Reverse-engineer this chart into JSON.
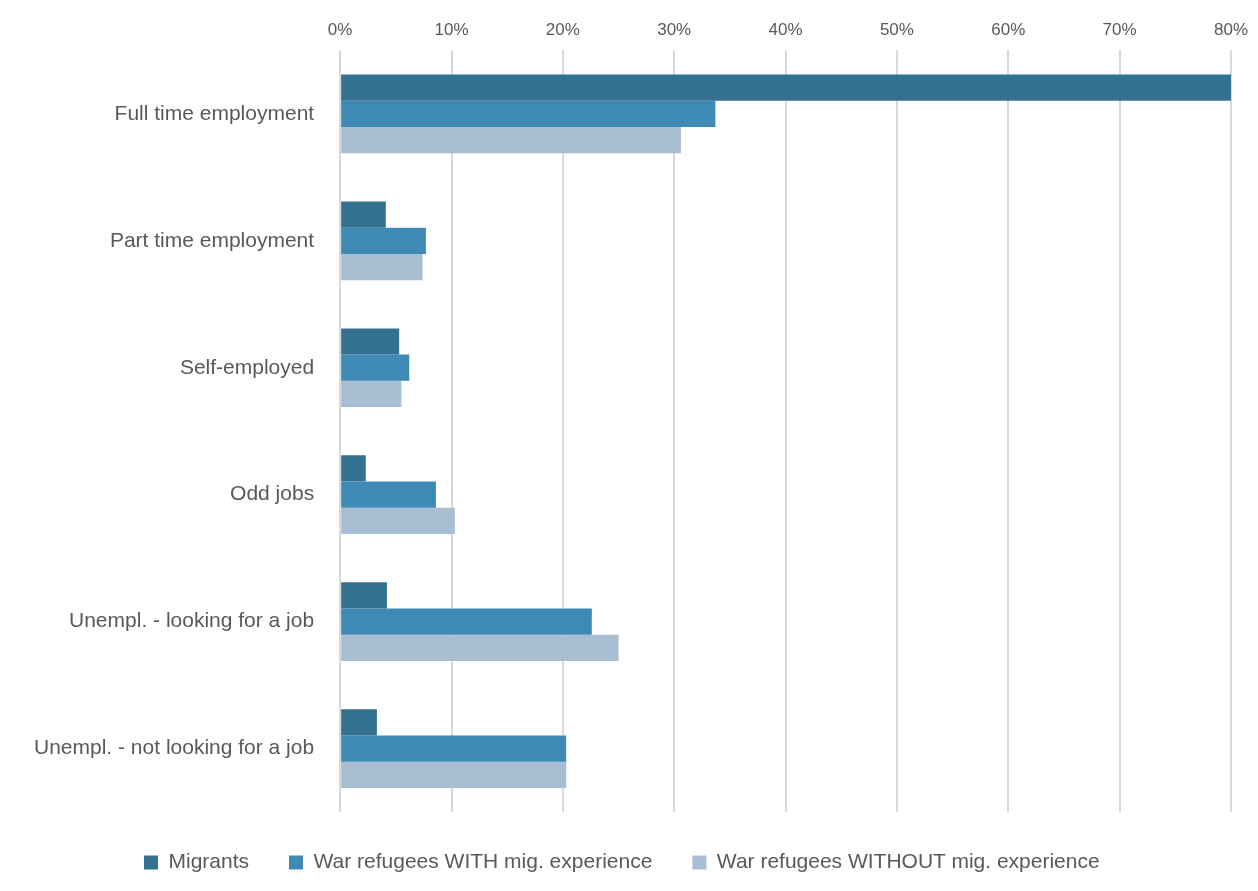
{
  "chart_data": {
    "type": "bar",
    "orientation": "horizontal",
    "categories": [
      "Full time employment",
      "Part time employment",
      "Self-employed",
      "Odd jobs",
      "Unempl. - looking for a job",
      "Unempl. - not looking for a job"
    ],
    "series": [
      {
        "name": "Migrants",
        "color": "#347090",
        "values": [
          80,
          4.1,
          5.3,
          2.3,
          4.2,
          3.3
        ]
      },
      {
        "name": "War refugees WITH mig. experience",
        "color": "#3f8ab5",
        "values": [
          33.7,
          7.7,
          6.2,
          8.6,
          22.6,
          20.3
        ]
      },
      {
        "name": "War refugees WITHOUT mig. experience",
        "color": "#a8bed3",
        "values": [
          30.6,
          7.4,
          5.5,
          10.3,
          25.0,
          20.3
        ]
      }
    ],
    "xlim": [
      0,
      80
    ],
    "xticks": [
      {
        "value": 0,
        "label": "0%"
      },
      {
        "value": 10,
        "label": "10%"
      },
      {
        "value": 20,
        "label": "20%"
      },
      {
        "value": 30,
        "label": "30%"
      },
      {
        "value": 40,
        "label": "40%"
      },
      {
        "value": 50,
        "label": "50%"
      },
      {
        "value": 60,
        "label": "60%"
      },
      {
        "value": 70,
        "label": "70%"
      },
      {
        "value": 80,
        "label": "80%"
      }
    ],
    "grid": "x",
    "legend": "bottom"
  }
}
